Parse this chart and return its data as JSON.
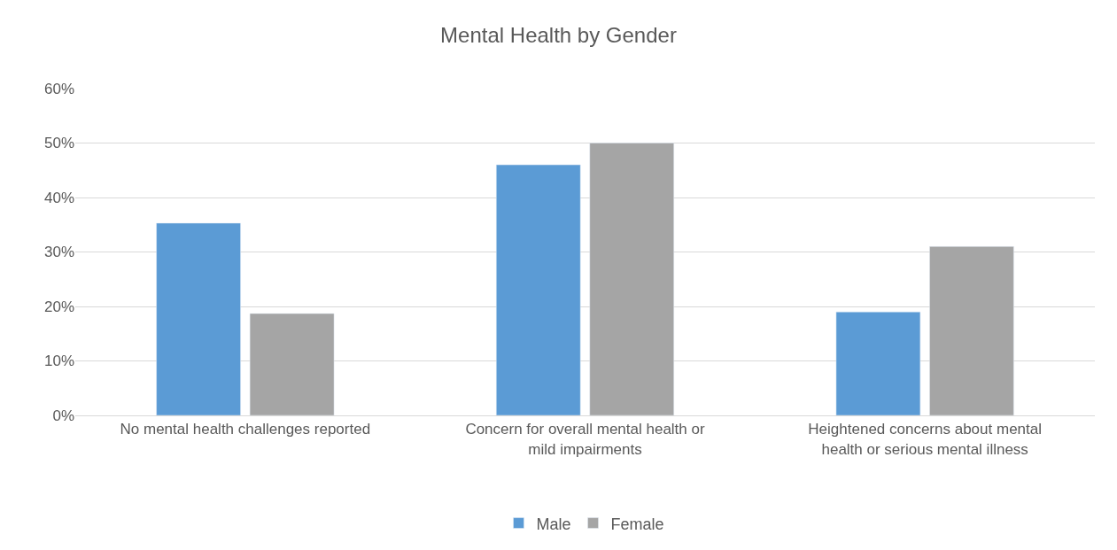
{
  "chart_data": {
    "type": "bar",
    "title": "Mental Health by Gender",
    "categories": [
      "No mental health challenges reported",
      "Concern for overall mental health or mild impairments",
      "Heightened concerns about mental health or serious mental illness"
    ],
    "series": [
      {
        "name": "Male",
        "color": "#5b9bd5",
        "values": [
          35.3,
          46,
          19
        ]
      },
      {
        "name": "Female",
        "color": "#a5a5a5",
        "values": [
          18.7,
          50,
          31
        ]
      }
    ],
    "ylim": [
      0,
      60
    ],
    "yticks": [
      {
        "value": 0,
        "label": "0%"
      },
      {
        "value": 10,
        "label": "10%"
      },
      {
        "value": 20,
        "label": "20%"
      },
      {
        "value": 30,
        "label": "30%"
      },
      {
        "value": 40,
        "label": "40%"
      },
      {
        "value": 50,
        "label": "50%"
      },
      {
        "value": 60,
        "label": "60%"
      }
    ],
    "grid": "y",
    "legend": "bottom"
  }
}
